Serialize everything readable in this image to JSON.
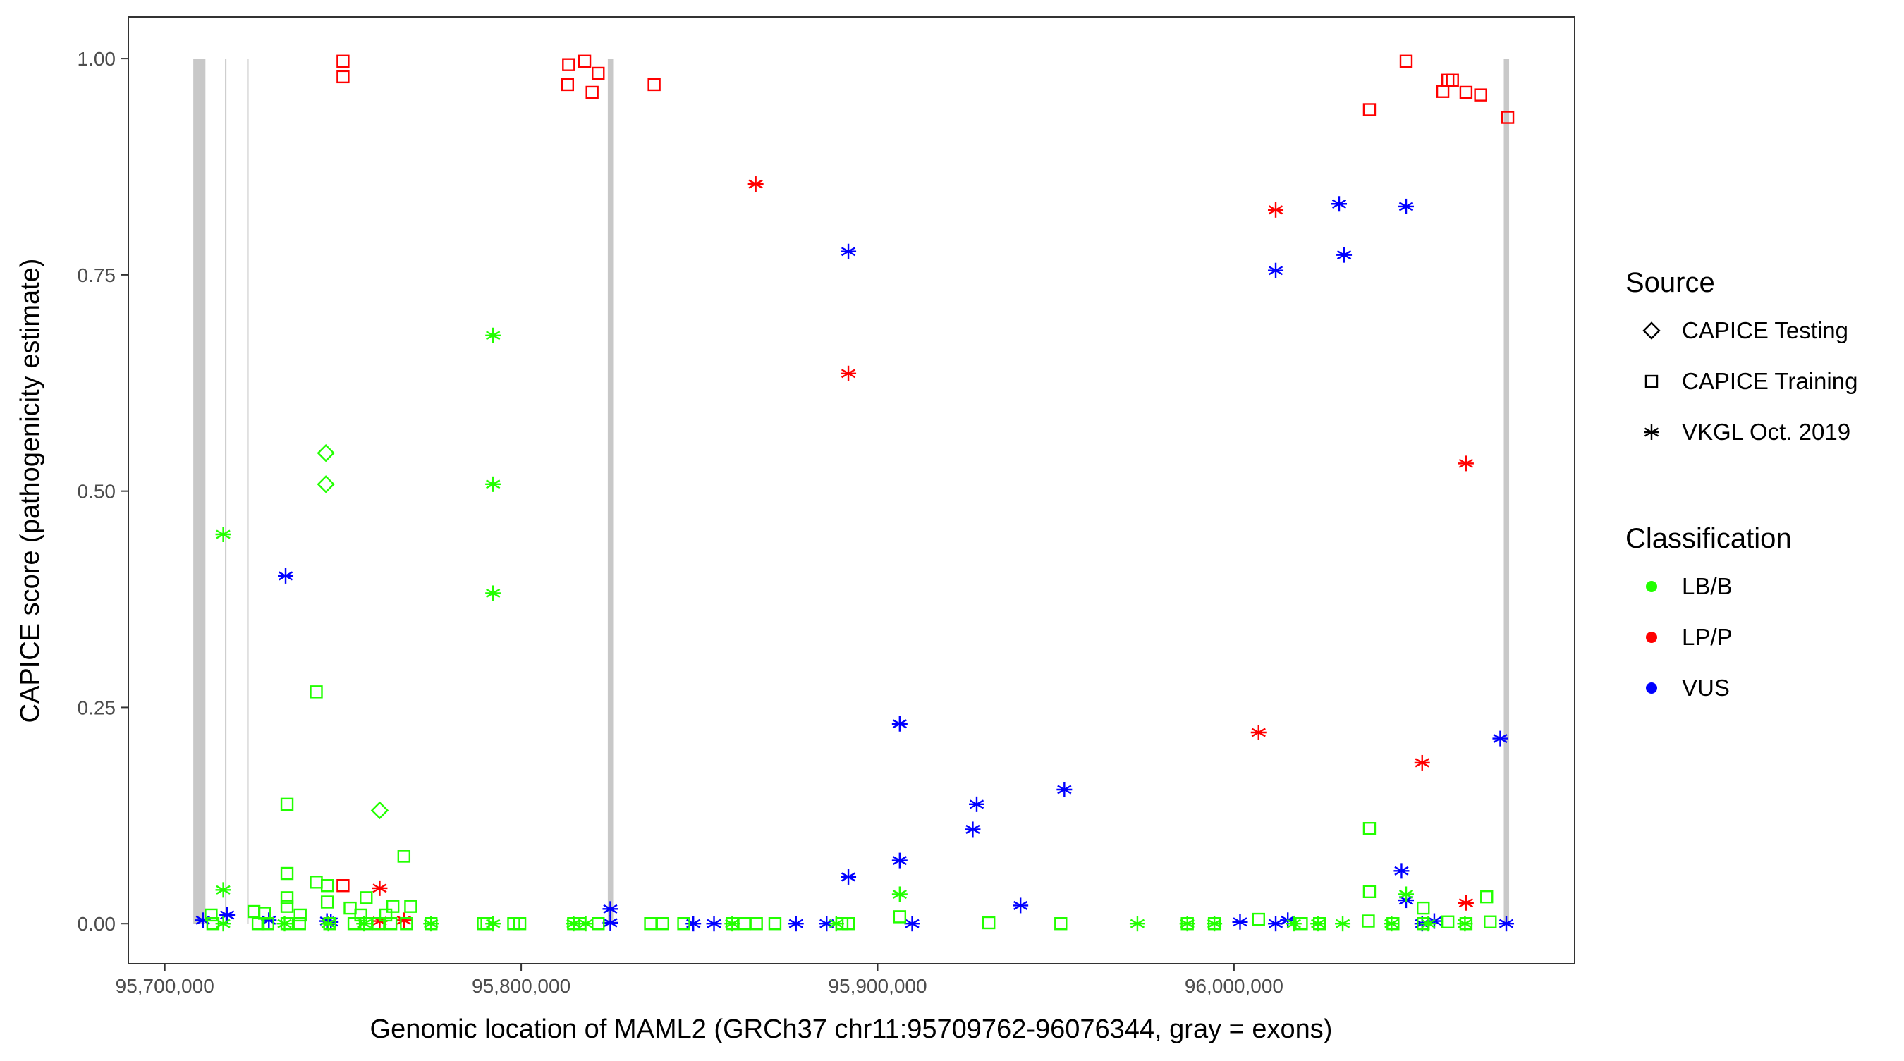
{
  "chart_data": {
    "type": "scatter",
    "title": "",
    "xlabel": "Genomic location of MAML2 (GRCh37 chr11:95709762-96076344, gray = exons)",
    "ylabel": "CAPICE score (pathogenicity estimate)",
    "xlim": [
      95676000,
      96082000
    ],
    "ylim": [
      -0.045,
      1.045
    ],
    "xticks": [
      95700000,
      95800000,
      95900000,
      96000000
    ],
    "xtick_labels": [
      "95,700,000",
      "95,800,000",
      "95,900,000",
      "96,000,000"
    ],
    "yticks": [
      0,
      0.25,
      0.5,
      0.75,
      1.0
    ],
    "ytick_labels": [
      "0.00",
      "0.25",
      "0.50",
      "0.75",
      "1.00"
    ],
    "grid": false,
    "legend_placement": "right",
    "exons": [
      [
        95708000,
        95711400
      ],
      [
        95716900,
        95717300
      ],
      [
        95723100,
        95723500
      ],
      [
        95824300,
        95825800
      ],
      [
        96075700,
        96077200
      ]
    ],
    "legend": {
      "source_title": "Source",
      "sources": [
        {
          "label": "CAPICE Testing",
          "shape": "diamond"
        },
        {
          "label": "CAPICE Training",
          "shape": "square"
        },
        {
          "label": "VKGL Oct. 2019",
          "shape": "asterisk"
        }
      ],
      "class_title": "Classification",
      "classes": [
        {
          "label": "LB/B",
          "color": "#22ff00"
        },
        {
          "label": "LP/P",
          "color": "#ff0000"
        },
        {
          "label": "VUS",
          "color": "#0000ff"
        }
      ]
    },
    "series": [
      {
        "source": "CAPICE Training",
        "classification": "LP/P",
        "points": [
          [
            95750000,
            0.997
          ],
          [
            95750000,
            0.979
          ],
          [
            95813000,
            0.97
          ],
          [
            95813300,
            0.993
          ],
          [
            95817800,
            0.997
          ],
          [
            95819900,
            0.961
          ],
          [
            95821600,
            0.983
          ],
          [
            95837300,
            0.97
          ],
          [
            96038000,
            0.941
          ],
          [
            96048300,
            0.997
          ],
          [
            96058600,
            0.962
          ],
          [
            96060000,
            0.975
          ],
          [
            96061300,
            0.975
          ],
          [
            96065100,
            0.961
          ],
          [
            96069200,
            0.958
          ],
          [
            96076800,
            0.932
          ],
          [
            95750000,
            0.044
          ]
        ]
      },
      {
        "source": "VKGL Oct. 2019",
        "classification": "LP/P",
        "points": [
          [
            95865800,
            0.855
          ],
          [
            95891800,
            0.636
          ],
          [
            96011700,
            0.825
          ],
          [
            96065100,
            0.532
          ],
          [
            96006900,
            0.221
          ],
          [
            96052800,
            0.186
          ],
          [
            96065100,
            0.024
          ],
          [
            95760300,
            0.041
          ],
          [
            95760300,
            0.003
          ],
          [
            95767100,
            0.004
          ]
        ]
      },
      {
        "source": "VKGL Oct. 2019",
        "classification": "VUS",
        "points": [
          [
            95891800,
            0.777
          ],
          [
            96011700,
            0.755
          ],
          [
            96029500,
            0.832
          ],
          [
            96030900,
            0.773
          ],
          [
            96048300,
            0.829
          ],
          [
            95733900,
            0.402
          ],
          [
            95906200,
            0.231
          ],
          [
            96074700,
            0.214
          ],
          [
            95952400,
            0.155
          ],
          [
            95927800,
            0.138
          ],
          [
            95926700,
            0.109
          ],
          [
            95906200,
            0.073
          ],
          [
            95891800,
            0.054
          ],
          [
            95940100,
            0.021
          ],
          [
            96047000,
            0.061
          ],
          [
            96048300,
            0.027
          ],
          [
            95710700,
            0.004
          ],
          [
            95717500,
            0.01
          ],
          [
            95729200,
            0.004
          ],
          [
            95745500,
            0.003
          ],
          [
            95746600,
            0.002
          ],
          [
            95825000,
            0.017
          ],
          [
            95825000,
            0.001
          ],
          [
            95848300,
            0.0
          ],
          [
            95854100,
            0.0
          ],
          [
            95877100,
            0.0
          ],
          [
            95885700,
            0.0
          ],
          [
            95909700,
            0.0
          ],
          [
            96001700,
            0.002
          ],
          [
            96011700,
            0.0
          ],
          [
            96015100,
            0.004
          ],
          [
            96052800,
            0.0
          ],
          [
            96056200,
            0.003
          ],
          [
            96076400,
            0.0
          ]
        ]
      },
      {
        "source": "VKGL Oct. 2019",
        "classification": "LB/B",
        "points": [
          [
            95716400,
            0.45
          ],
          [
            95716400,
            0.039
          ],
          [
            95792100,
            0.68
          ],
          [
            95792100,
            0.508
          ],
          [
            95792100,
            0.382
          ],
          [
            95906200,
            0.034
          ],
          [
            96048300,
            0.034
          ],
          [
            95716400,
            0.0
          ],
          [
            95733600,
            0.0
          ],
          [
            95745900,
            0.0
          ],
          [
            95755900,
            0.0
          ],
          [
            95774700,
            0.0
          ],
          [
            95792100,
            0.0
          ],
          [
            95814700,
            0.0
          ],
          [
            95818100,
            0.0
          ],
          [
            95859200,
            0.0
          ],
          [
            95888400,
            0.0
          ],
          [
            95972900,
            0.0
          ],
          [
            95986900,
            0.0
          ],
          [
            95994500,
            0.0
          ],
          [
            96016800,
            0.0
          ],
          [
            96023600,
            0.0
          ],
          [
            96030500,
            0.0
          ],
          [
            96044200,
            0.0
          ],
          [
            96054500,
            0.0
          ],
          [
            96064800,
            0.0
          ]
        ]
      },
      {
        "source": "CAPICE Testing",
        "classification": "LB/B",
        "points": [
          [
            95745200,
            0.544
          ],
          [
            95745200,
            0.508
          ],
          [
            95760300,
            0.131
          ]
        ]
      },
      {
        "source": "CAPICE Training",
        "classification": "LB/B",
        "points": [
          [
            95742500,
            0.268
          ],
          [
            95734300,
            0.138
          ],
          [
            95734300,
            0.058
          ],
          [
            95767100,
            0.078
          ],
          [
            96038000,
            0.11
          ],
          [
            96038000,
            0.037
          ],
          [
            96070900,
            0.031
          ],
          [
            96053100,
            0.018
          ],
          [
            95742500,
            0.048
          ],
          [
            95745600,
            0.044
          ],
          [
            95756500,
            0.03
          ],
          [
            95764000,
            0.02
          ],
          [
            95734300,
            0.03
          ],
          [
            95734300,
            0.02
          ],
          [
            95745600,
            0.025
          ],
          [
            95752000,
            0.018
          ],
          [
            95713000,
            0.01
          ],
          [
            95725000,
            0.014
          ],
          [
            95728000,
            0.012
          ],
          [
            95738000,
            0.01
          ],
          [
            95755000,
            0.01
          ],
          [
            95762000,
            0.01
          ],
          [
            95769000,
            0.02
          ],
          [
            95713500,
            0.0
          ],
          [
            95726200,
            0.0
          ],
          [
            95728900,
            0.0
          ],
          [
            95734300,
            0.0
          ],
          [
            95737800,
            0.0
          ],
          [
            95746300,
            0.0
          ],
          [
            95753100,
            0.0
          ],
          [
            95756500,
            0.0
          ],
          [
            95759900,
            0.0
          ],
          [
            95763400,
            0.0
          ],
          [
            95767800,
            0.0
          ],
          [
            95774700,
            0.0
          ],
          [
            95789400,
            0.0
          ],
          [
            95790400,
            0.0
          ],
          [
            95797900,
            0.0
          ],
          [
            95799600,
            0.0
          ],
          [
            95814700,
            0.0
          ],
          [
            95816400,
            0.0
          ],
          [
            95821600,
            0.0
          ],
          [
            95836300,
            0.0
          ],
          [
            95839700,
            0.0
          ],
          [
            95845600,
            0.0
          ],
          [
            95859200,
            0.0
          ],
          [
            95862600,
            0.0
          ],
          [
            95866000,
            0.0
          ],
          [
            95871200,
            0.0
          ],
          [
            95890000,
            0.0
          ],
          [
            95891800,
            0.0
          ],
          [
            95906200,
            0.008
          ],
          [
            95931200,
            0.001
          ],
          [
            95951400,
            0.0
          ],
          [
            95986900,
            0.0
          ],
          [
            95994500,
            0.0
          ],
          [
            96006900,
            0.005
          ],
          [
            96018900,
            0.0
          ],
          [
            96024000,
            0.0
          ],
          [
            96037700,
            0.003
          ],
          [
            96044600,
            0.0
          ],
          [
            96053100,
            0.0
          ],
          [
            96060000,
            0.002
          ],
          [
            96065100,
            0.0
          ],
          [
            96071900,
            0.002
          ]
        ]
      }
    ]
  }
}
